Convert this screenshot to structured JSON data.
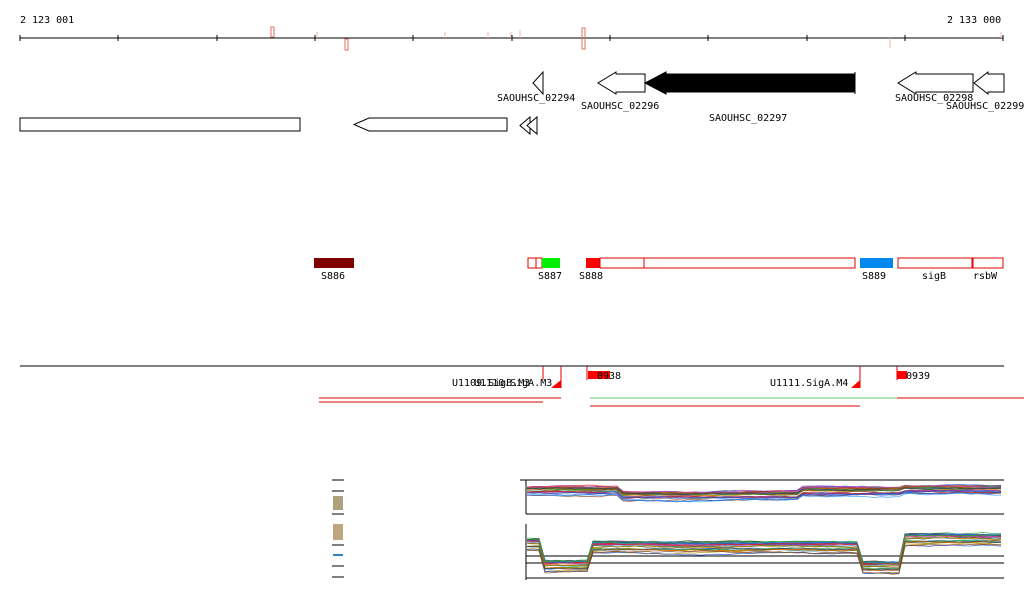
{
  "ruler": {
    "start_label": "2 123 001",
    "end_label": "2 133 000"
  },
  "genes": [
    {
      "id": "g1",
      "label": "",
      "strand": "+",
      "filled": false
    },
    {
      "id": "g2",
      "label": "",
      "strand": "-",
      "filled": false
    },
    {
      "id": "g3",
      "label": "",
      "strand": "-",
      "filled": false
    },
    {
      "id": "g4",
      "label": "SAOUHSC_02294",
      "strand": "-",
      "filled": false
    },
    {
      "id": "g5",
      "label": "SAOUHSC_02296",
      "strand": "-",
      "filled": false
    },
    {
      "id": "g6",
      "label": "SAOUHSC_02297",
      "strand": "-",
      "filled": true
    },
    {
      "id": "g7",
      "label": "SAOUHSC_02298",
      "strand": "-",
      "filled": false
    },
    {
      "id": "g8",
      "label": "SAOUHSC_02299",
      "strand": "-",
      "filled": false
    }
  ],
  "segments": [
    {
      "id": "s886",
      "label": "S886",
      "color": "#800000",
      "filled": true
    },
    {
      "id": "s887",
      "label": "S887",
      "color": "#00ee00",
      "filled": true
    },
    {
      "id": "s888",
      "label": "S888",
      "color": "#ff0000",
      "filled": true
    },
    {
      "id": "s889",
      "label": "S889",
      "color": "#0088ee",
      "filled": true
    },
    {
      "id": "sigB",
      "label": "sigB",
      "color": "#dd0000",
      "filled": false
    },
    {
      "id": "rsbW",
      "label": "rsbW",
      "color": "#dd0000",
      "filled": false
    }
  ],
  "promoters": [
    {
      "id": "p1",
      "label": "U1109.SigB.M3"
    },
    {
      "id": "p2",
      "label": "U1110.SigA.M3"
    },
    {
      "id": "p3",
      "label": "U1111.SigA.M4"
    },
    {
      "id": "p4",
      "label": "0938"
    },
    {
      "id": "p5",
      "label": "0939"
    }
  ],
  "colors": {
    "gene_outline": "#000000",
    "segment_outline": "#dd0000",
    "transcript_red": "#dd0000",
    "transcript_green": "#66cc66",
    "promoter": "#ff0000"
  }
}
